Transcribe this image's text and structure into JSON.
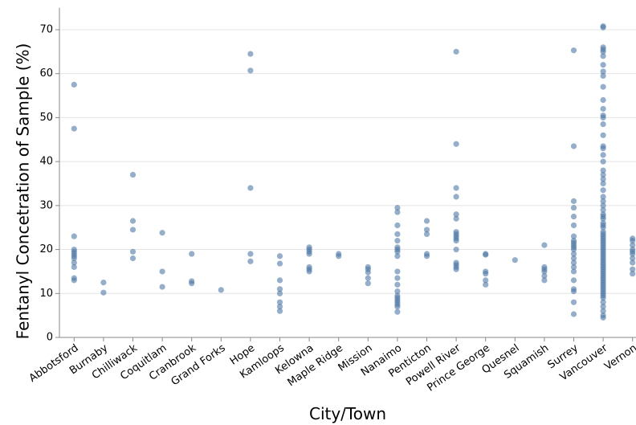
{
  "chart_data": {
    "type": "strip",
    "y_label": "Fentanyl Concetration of Sample (%)",
    "x_label": "City/Town",
    "color": "#4c78a8",
    "grid": true,
    "ylim": [
      0,
      75
    ],
    "yticks": [
      0,
      10,
      20,
      30,
      40,
      50,
      60,
      70
    ],
    "categories": [
      "Abbotsford",
      "Burnaby",
      "Chilliwack",
      "Coquitlam",
      "Cranbrook",
      "Grand Forks",
      "Hope",
      "Kamloops",
      "Kelowna",
      "Maple Ridge",
      "Mission",
      "Nanaimo",
      "Penticton",
      "Powell River",
      "Prince George",
      "Quesnel",
      "Squamish",
      "Surrey",
      "Vancouver",
      "Vernon"
    ],
    "values": [
      [
        57.5,
        47.5,
        23,
        20,
        19.5,
        19,
        18.5,
        18,
        17,
        16,
        13.5,
        13
      ],
      [
        12.5,
        10.2
      ],
      [
        37,
        26.5,
        24.5,
        19.5,
        18
      ],
      [
        23.8,
        15,
        11.5
      ],
      [
        19,
        12.8,
        12.3
      ],
      [
        10.8
      ],
      [
        64.5,
        60.7,
        34,
        19,
        17.3
      ],
      [
        18.5,
        16.8,
        13,
        11,
        10,
        8,
        7,
        6
      ],
      [
        20.5,
        20,
        19.5,
        19,
        16,
        15.5,
        15
      ],
      [
        19,
        18.5
      ],
      [
        16,
        15.5,
        14.8,
        13.5,
        12.3
      ],
      [
        29.5,
        28.5,
        25.5,
        23.5,
        22,
        20.5,
        20,
        19.5,
        18.5,
        15,
        13.5,
        12,
        10.5,
        9.5,
        9,
        8.5,
        8,
        7.5,
        7,
        5.8
      ],
      [
        26.5,
        24.5,
        23.5,
        19,
        18.5
      ],
      [
        65,
        44,
        34,
        32,
        28,
        27,
        24,
        23.5,
        23,
        22.5,
        22,
        20,
        17,
        16.5,
        16,
        15.5
      ],
      [
        19,
        18.8,
        15,
        14.5,
        13,
        12
      ],
      [
        17.6
      ],
      [
        21,
        16,
        15.5,
        15,
        14,
        13
      ],
      [
        65.3,
        43.5,
        31,
        29.5,
        27.5,
        25.5,
        23,
        22,
        21.5,
        21,
        20.5,
        20,
        19,
        18,
        17,
        16,
        15,
        13,
        11,
        10.5,
        8,
        5.3
      ],
      [
        70.8,
        70.5,
        66,
        65.5,
        65,
        64,
        62,
        60.5,
        59.5,
        57,
        54,
        52,
        50.5,
        50,
        48.5,
        46,
        43.5,
        43,
        41.5,
        40,
        38,
        37,
        36,
        35,
        33.5,
        32,
        31,
        30,
        29,
        28,
        27.5,
        27,
        26,
        25.5,
        25,
        24,
        23.5,
        23,
        22.5,
        22,
        21.5,
        21,
        20.5,
        20,
        19.5,
        19,
        18.5,
        18,
        17.5,
        17,
        16.5,
        16,
        15.5,
        15,
        14.5,
        14,
        13.5,
        13,
        12.5,
        12,
        11.5,
        11,
        10.5,
        10,
        9.5,
        9,
        8,
        7,
        6,
        5,
        4.5
      ],
      [
        22.5,
        22,
        21,
        20,
        19.5,
        19,
        18,
        17,
        15.5,
        14.5
      ]
    ]
  }
}
